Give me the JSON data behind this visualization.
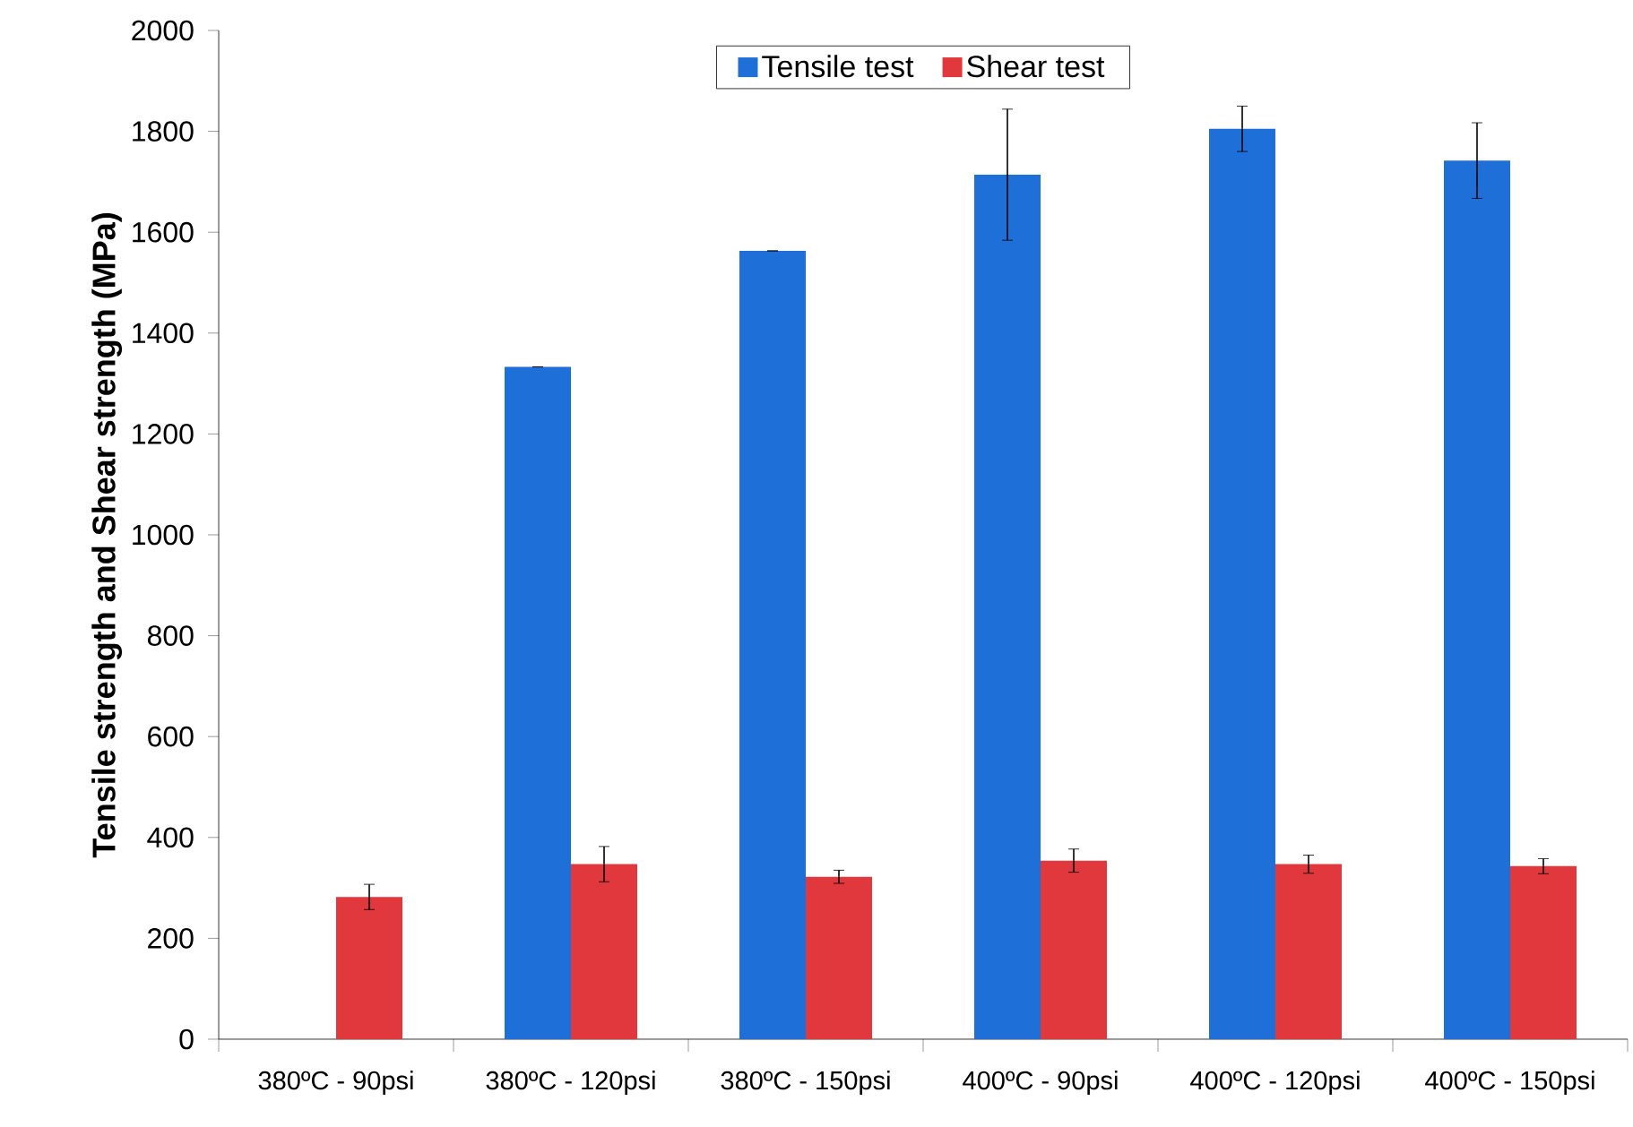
{
  "chart_data": {
    "type": "bar",
    "ylabel": "Tensile strength and Shear strength (MPa)",
    "categories": [
      "380ºC - 90psi",
      "380ºC - 120psi",
      "380ºC - 150psi",
      "400ºC - 90psi",
      "400ºC - 120psi",
      "400ºC - 150psi"
    ],
    "series": [
      {
        "name": "Tensile test",
        "color": "#1f6fd8",
        "values": [
          null,
          1333,
          1563,
          1714,
          1805,
          1742
        ],
        "errors": [
          null,
          0,
          0,
          130,
          45,
          75
        ]
      },
      {
        "name": "Shear test",
        "color": "#e0383c",
        "values": [
          282,
          347,
          322,
          354,
          347,
          343
        ],
        "errors": [
          25,
          35,
          13,
          23,
          18,
          15
        ]
      }
    ],
    "ylim": [
      0,
      2000
    ],
    "yticks": [
      0,
      200,
      400,
      600,
      800,
      1000,
      1200,
      1400,
      1600,
      1800,
      2000
    ],
    "grid": false,
    "legend": "top"
  }
}
